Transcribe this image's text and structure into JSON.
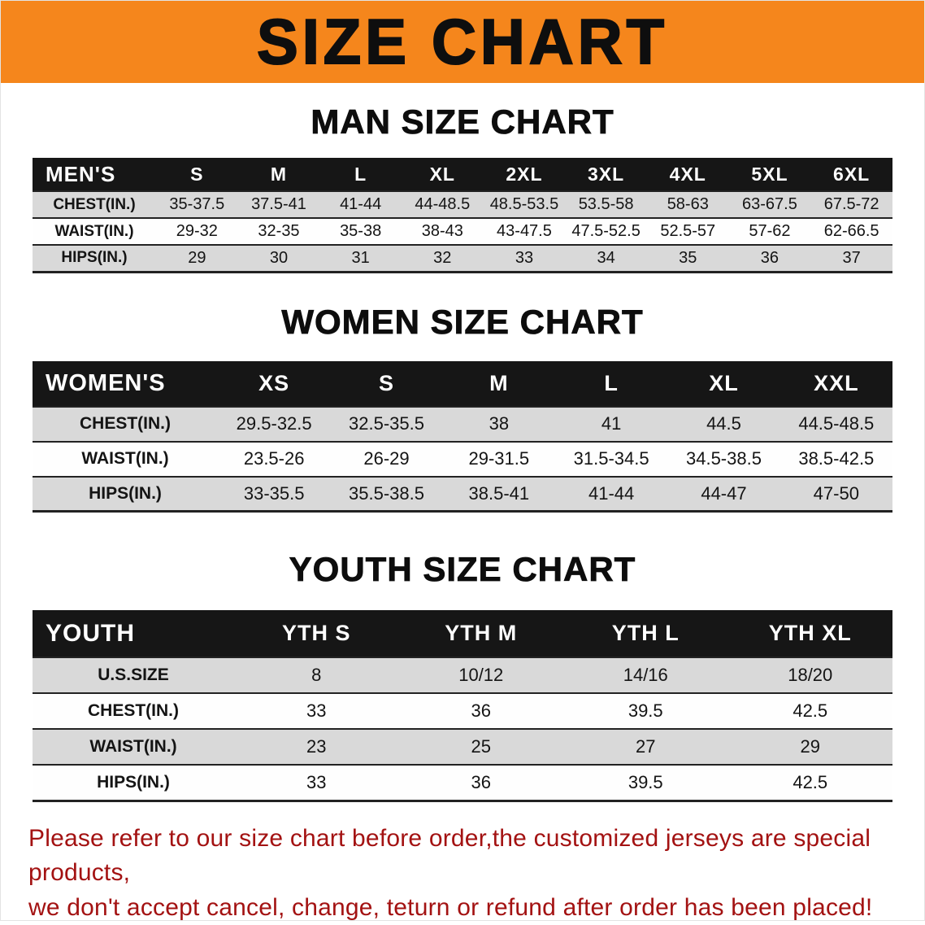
{
  "banner": {
    "title": "SIZE CHART",
    "background_color": "#F5861C"
  },
  "chart_data": [
    {
      "type": "table",
      "title": "MAN SIZE CHART",
      "columns": [
        "MEN'S",
        "S",
        "M",
        "L",
        "XL",
        "2XL",
        "3XL",
        "4XL",
        "5XL",
        "6XL"
      ],
      "rows": [
        [
          "CHEST(IN.)",
          "35-37.5",
          "37.5-41",
          "41-44",
          "44-48.5",
          "48.5-53.5",
          "53.5-58",
          "58-63",
          "63-67.5",
          "67.5-72"
        ],
        [
          "WAIST(IN.)",
          "29-32",
          "32-35",
          "35-38",
          "38-43",
          "43-47.5",
          "47.5-52.5",
          "52.5-57",
          "57-62",
          "62-66.5"
        ],
        [
          "HIPS(IN.)",
          "29",
          "30",
          "31",
          "32",
          "33",
          "34",
          "35",
          "36",
          "37"
        ]
      ]
    },
    {
      "type": "table",
      "title": "WOMEN SIZE CHART",
      "columns": [
        "WOMEN'S",
        "XS",
        "S",
        "M",
        "L",
        "XL",
        "XXL"
      ],
      "rows": [
        [
          "CHEST(IN.)",
          "29.5-32.5",
          "32.5-35.5",
          "38",
          "41",
          "44.5",
          "44.5-48.5"
        ],
        [
          "WAIST(IN.)",
          "23.5-26",
          "26-29",
          "29-31.5",
          "31.5-34.5",
          "34.5-38.5",
          "38.5-42.5"
        ],
        [
          "HIPS(IN.)",
          "33-35.5",
          "35.5-38.5",
          "38.5-41",
          "41-44",
          "44-47",
          "47-50"
        ]
      ]
    },
    {
      "type": "table",
      "title": "YOUTH SIZE CHART",
      "columns": [
        "YOUTH",
        "YTH S",
        "YTH M",
        "YTH L",
        "YTH XL"
      ],
      "rows": [
        [
          "U.S.SIZE",
          "8",
          "10/12",
          "14/16",
          "18/20"
        ],
        [
          "CHEST(IN.)",
          "33",
          "36",
          "39.5",
          "42.5"
        ],
        [
          "WAIST(IN.)",
          "23",
          "25",
          "27",
          "29"
        ],
        [
          "HIPS(IN.)",
          "33",
          "36",
          "39.5",
          "42.5"
        ]
      ]
    }
  ],
  "footer": {
    "line1": "Please refer to our size chart before order,the customized jerseys are special products,",
    "line2": "we don't accept cancel, change, teturn or refund after order has been placed!",
    "text_color": "#A31212"
  }
}
